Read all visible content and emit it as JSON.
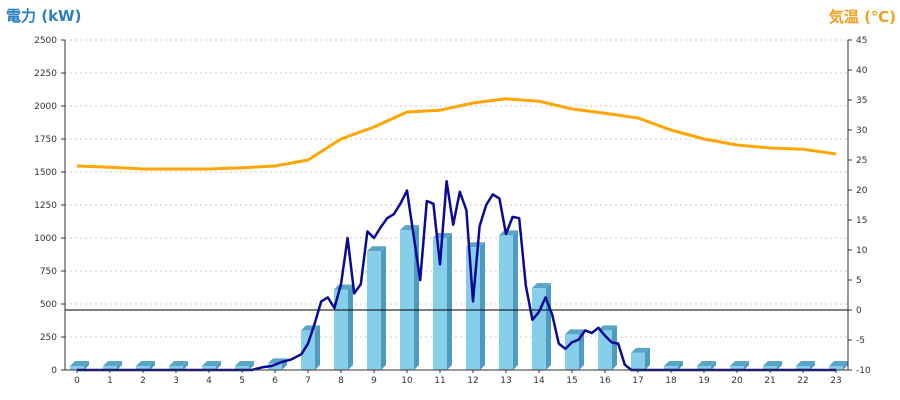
{
  "chart_data": {
    "type": "bar+line",
    "left_title": "電力 (kW)",
    "right_title": "気温 (℃)",
    "left_axis": {
      "range": [
        0,
        2500
      ],
      "ticks": [
        "0",
        "250",
        "500",
        "750",
        "1000",
        "1250",
        "1500",
        "1750",
        "2000",
        "2250",
        "2500"
      ]
    },
    "right_axis": {
      "range": [
        -10,
        45
      ],
      "ticks": [
        "-10",
        "-5",
        "0",
        "5",
        "10",
        "15",
        "20",
        "25",
        "30",
        "35",
        "40",
        "45"
      ]
    },
    "categories": [
      "0",
      "1",
      "2",
      "3",
      "4",
      "5",
      "6",
      "7",
      "8",
      "9",
      "10",
      "11",
      "12",
      "13",
      "14",
      "15",
      "16",
      "17",
      "18",
      "19",
      "20",
      "21",
      "22",
      "23"
    ],
    "grid": true,
    "bar_colors": {
      "front": "#87ceeb",
      "side": "#4f9bc0",
      "top": "#5aa4c8"
    },
    "line_color": "#0a0a96",
    "temp_color": "#ffa500",
    "bars": [
      0,
      0,
      0,
      0,
      0,
      0,
      50,
      300,
      610,
      900,
      1060,
      1000,
      930,
      1020,
      620,
      270,
      300,
      130,
      0,
      0,
      0,
      0,
      0,
      0
    ],
    "power_line": {
      "x": [
        0,
        1,
        2,
        3,
        4,
        5,
        5.3,
        5.6,
        5.9,
        6.2,
        6.5,
        6.8,
        7.0,
        7.2,
        7.4,
        7.6,
        7.8,
        8.0,
        8.2,
        8.4,
        8.6,
        8.8,
        9.0,
        9.2,
        9.4,
        9.6,
        9.8,
        10.0,
        10.2,
        10.4,
        10.6,
        10.8,
        11.0,
        11.2,
        11.4,
        11.6,
        11.8,
        12.0,
        12.2,
        12.4,
        12.6,
        12.8,
        13.0,
        13.2,
        13.4,
        13.6,
        13.8,
        14.0,
        14.2,
        14.4,
        14.6,
        14.8,
        15.0,
        15.2,
        15.4,
        15.6,
        15.8,
        16.0,
        16.2,
        16.4,
        16.6,
        16.8,
        17.0,
        17.2,
        17.4,
        18,
        19,
        20,
        21,
        22,
        23
      ],
      "y": [
        0,
        0,
        0,
        0,
        0,
        0,
        0,
        20,
        30,
        60,
        80,
        120,
        200,
        350,
        520,
        550,
        470,
        650,
        1000,
        580,
        650,
        1050,
        1000,
        1080,
        1150,
        1180,
        1260,
        1360,
        1020,
        680,
        1280,
        1260,
        800,
        1430,
        1100,
        1350,
        1210,
        520,
        1090,
        1250,
        1330,
        1300,
        1030,
        1160,
        1150,
        640,
        380,
        440,
        550,
        420,
        200,
        160,
        210,
        230,
        300,
        280,
        320,
        260,
        210,
        200,
        40,
        0,
        0,
        0,
        0,
        0,
        0,
        0,
        0,
        0,
        0
      ]
    },
    "temperature": [
      24.0,
      23.8,
      23.5,
      23.5,
      23.5,
      23.7,
      24.0,
      25.0,
      28.5,
      30.5,
      33.0,
      33.3,
      34.5,
      35.2,
      34.8,
      33.5,
      32.8,
      32.0,
      30.0,
      28.5,
      27.5,
      27.0,
      26.8,
      26.0
    ]
  }
}
